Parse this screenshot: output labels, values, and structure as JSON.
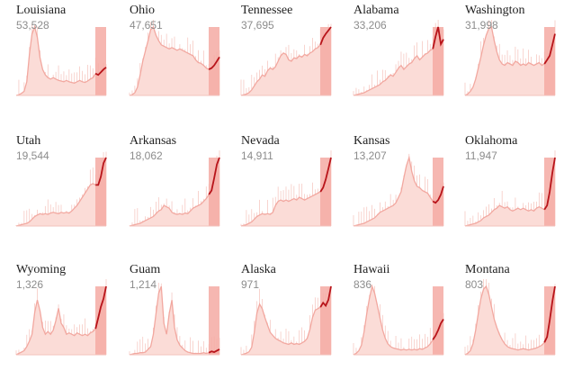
{
  "chart_data": {
    "type": "small-multiples-area",
    "panels": [
      {
        "name": "Louisiana",
        "value": "53,528",
        "values": [
          0,
          1,
          3,
          6,
          20,
          60,
          90,
          100,
          85,
          55,
          38,
          30,
          26,
          24,
          26,
          24,
          22,
          21,
          20,
          22,
          20,
          19,
          18,
          20,
          22,
          20,
          19,
          21,
          24,
          26,
          32,
          30,
          34,
          38,
          41
        ]
      },
      {
        "name": "Ohio",
        "value": "47,651",
        "values": [
          0,
          1,
          4,
          12,
          30,
          50,
          65,
          80,
          96,
          100,
          88,
          80,
          74,
          72,
          70,
          68,
          70,
          68,
          66,
          68,
          66,
          64,
          62,
          60,
          58,
          52,
          48,
          47,
          44,
          40,
          38,
          40,
          44,
          50,
          56
        ]
      },
      {
        "name": "Tennessee",
        "value": "37,695",
        "values": [
          0,
          1,
          2,
          4,
          8,
          14,
          20,
          24,
          30,
          28,
          36,
          40,
          38,
          42,
          50,
          58,
          62,
          60,
          52,
          50,
          55,
          54,
          58,
          56,
          60,
          58,
          62,
          64,
          68,
          70,
          74,
          84,
          90,
          95,
          100
        ]
      },
      {
        "name": "Alabama",
        "value": "33,206",
        "values": [
          0,
          1,
          2,
          3,
          4,
          6,
          8,
          10,
          12,
          14,
          16,
          20,
          22,
          26,
          30,
          28,
          34,
          40,
          44,
          38,
          42,
          46,
          48,
          54,
          58,
          52,
          56,
          60,
          62,
          66,
          68,
          86,
          100,
          75,
          82
        ]
      },
      {
        "name": "Washington",
        "value": "31,998",
        "values": [
          0,
          2,
          6,
          12,
          24,
          40,
          56,
          74,
          88,
          98,
          100,
          80,
          64,
          52,
          46,
          44,
          48,
          46,
          44,
          50,
          48,
          44,
          46,
          44,
          48,
          46,
          44,
          46,
          48,
          44,
          46,
          52,
          58,
          74,
          90
        ]
      },
      {
        "name": "Utah",
        "value": "19,544",
        "values": [
          0,
          1,
          2,
          3,
          4,
          6,
          10,
          14,
          16,
          18,
          17,
          18,
          17,
          19,
          20,
          19,
          18,
          20,
          19,
          20,
          19,
          22,
          26,
          30,
          36,
          42,
          48,
          54,
          60,
          62,
          60,
          60,
          72,
          92,
          100
        ]
      },
      {
        "name": "Arkansas",
        "value": "18,062",
        "values": [
          0,
          1,
          2,
          3,
          4,
          6,
          8,
          10,
          12,
          14,
          18,
          22,
          24,
          30,
          28,
          26,
          20,
          18,
          17,
          18,
          17,
          19,
          18,
          22,
          26,
          28,
          30,
          32,
          36,
          40,
          46,
          52,
          70,
          90,
          100
        ]
      },
      {
        "name": "Nevada",
        "value": "14,911",
        "values": [
          0,
          1,
          2,
          4,
          6,
          10,
          14,
          16,
          18,
          17,
          18,
          17,
          20,
          30,
          36,
          38,
          36,
          38,
          36,
          38,
          40,
          38,
          42,
          40,
          38,
          40,
          42,
          44,
          46,
          48,
          50,
          56,
          68,
          84,
          100
        ]
      },
      {
        "name": "Kansas",
        "value": "13,207",
        "values": [
          0,
          1,
          2,
          3,
          4,
          6,
          8,
          10,
          12,
          16,
          20,
          22,
          24,
          26,
          28,
          30,
          34,
          42,
          50,
          70,
          88,
          100,
          80,
          66,
          58,
          56,
          52,
          50,
          48,
          42,
          36,
          34,
          38,
          46,
          58
        ]
      },
      {
        "name": "Oklahoma",
        "value": "11,947",
        "values": [
          0,
          1,
          2,
          3,
          4,
          6,
          8,
          12,
          14,
          16,
          20,
          24,
          26,
          30,
          28,
          26,
          28,
          24,
          22,
          24,
          26,
          24,
          26,
          24,
          22,
          24,
          22,
          26,
          28,
          26,
          24,
          30,
          50,
          78,
          100
        ]
      },
      {
        "name": "Wyoming",
        "value": "1,326",
        "values": [
          0,
          2,
          4,
          6,
          12,
          20,
          30,
          62,
          80,
          64,
          40,
          30,
          34,
          30,
          36,
          50,
          68,
          46,
          40,
          30,
          32,
          30,
          28,
          32,
          30,
          28,
          30,
          28,
          32,
          34,
          38,
          54,
          70,
          82,
          100
        ]
      },
      {
        "name": "Guam",
        "value": "1,214",
        "values": [
          0,
          1,
          2,
          2,
          3,
          3,
          4,
          8,
          12,
          30,
          60,
          90,
          100,
          46,
          30,
          60,
          80,
          40,
          22,
          14,
          10,
          6,
          4,
          3,
          2,
          2,
          2,
          2,
          3,
          2,
          3,
          5,
          4,
          6,
          8
        ]
      },
      {
        "name": "Alaska",
        "value": "971",
        "values": [
          0,
          1,
          2,
          4,
          10,
          30,
          56,
          68,
          62,
          50,
          40,
          30,
          26,
          22,
          20,
          18,
          16,
          15,
          14,
          16,
          14,
          15,
          14,
          16,
          18,
          22,
          34,
          50,
          60,
          62,
          64,
          70,
          66,
          74,
          92
        ]
      },
      {
        "name": "Hawaii",
        "value": "836",
        "values": [
          0,
          2,
          6,
          14,
          34,
          60,
          82,
          100,
          90,
          72,
          54,
          36,
          24,
          16,
          12,
          10,
          9,
          8,
          7,
          8,
          7,
          8,
          7,
          8,
          7,
          9,
          8,
          10,
          12,
          16,
          22,
          28,
          36,
          46,
          52
        ]
      },
      {
        "name": "Montana",
        "value": "803",
        "values": [
          0,
          2,
          6,
          16,
          36,
          60,
          82,
          96,
          100,
          88,
          70,
          52,
          40,
          30,
          22,
          16,
          12,
          10,
          9,
          8,
          7,
          8,
          9,
          8,
          7,
          8,
          9,
          10,
          12,
          14,
          18,
          26,
          50,
          78,
          100
        ]
      }
    ]
  },
  "colors": {
    "area_fill": "#fbdcd7",
    "line": "#f2a8a0",
    "recent_fill": "#f4aaa3",
    "recent_line": "#b8141a",
    "name_text": "#222222",
    "count_text": "#8c8c8c"
  }
}
